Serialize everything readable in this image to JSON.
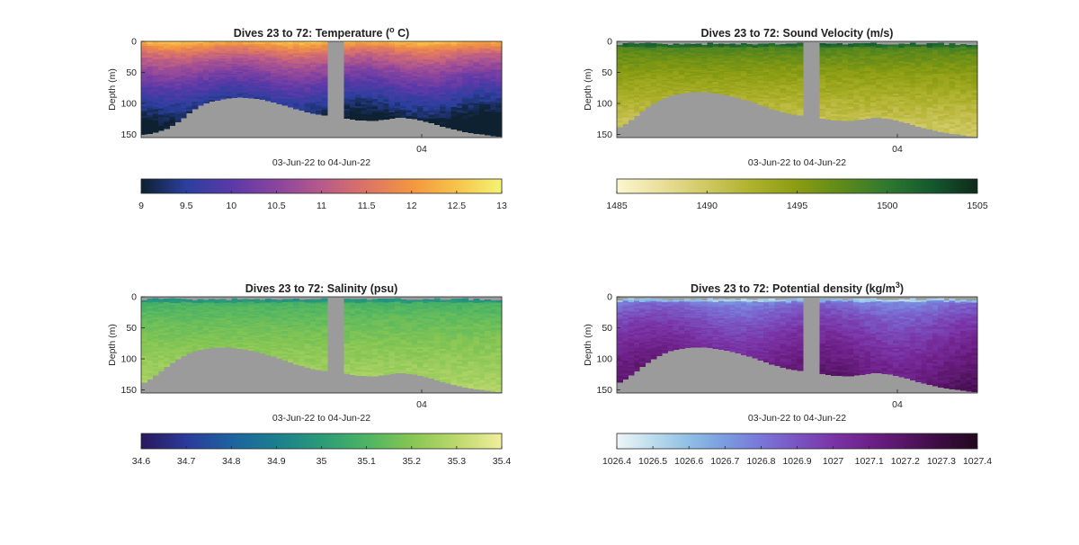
{
  "figure": {
    "colors": {
      "background": "#ffffff",
      "no_data": "#9b9b9b",
      "axis": "#262626"
    }
  },
  "chart_data": [
    {
      "type": "heatmap",
      "title": "Dives 23 to 72: Temperature (° C)",
      "title_parts": {
        "before": "Dives 23 to 72: Temperature (",
        "sup": "o",
        "after": " C)"
      },
      "xlabel": "03-Jun-22 to 04-Jun-22",
      "ylabel": "Depth (m)",
      "yticks": [
        0,
        50,
        100,
        150
      ],
      "ylim": [
        0,
        155
      ],
      "ydir": "reverse",
      "xticks": [
        "04"
      ],
      "colorbar": {
        "min": 9,
        "max": 13,
        "ticks": [
          "9",
          "9.5",
          "10",
          "10.5",
          "11",
          "11.5",
          "12",
          "12.5",
          "13"
        ],
        "colormap": [
          "#0d2130",
          "#2b3f9e",
          "#5b39a8",
          "#8a449e",
          "#b65a8a",
          "#dc7466",
          "#f39640",
          "#f7c34a",
          "#f3f472"
        ]
      },
      "seafloor_depth_profile_m": [
        150,
        148,
        145,
        140,
        132,
        122,
        110,
        102,
        97,
        94,
        91,
        90,
        90,
        91,
        93,
        96,
        100,
        104,
        108,
        112,
        116,
        118,
        120,
        122,
        124,
        126,
        127,
        128,
        126,
        124,
        122,
        123,
        125,
        128,
        132,
        136,
        140,
        143,
        146,
        148,
        150,
        152,
        153
      ]
    },
    {
      "type": "heatmap",
      "title": "Dives 23 to 72: Sound Velocity (m/s)",
      "xlabel": "03-Jun-22 to 04-Jun-22",
      "ylabel": "Depth (m)",
      "yticks": [
        0,
        50,
        100,
        150
      ],
      "ylim": [
        0,
        155
      ],
      "ydir": "reverse",
      "xticks": [
        "04"
      ],
      "colorbar": {
        "min": 1485,
        "max": 1505,
        "ticks": [
          "1485",
          "1490",
          "1495",
          "1500",
          "1505"
        ],
        "colormap": [
          "#fbf7cf",
          "#e8df9a",
          "#cfc862",
          "#aeb12c",
          "#8a9c12",
          "#5e8a1a",
          "#2f7830",
          "#14582e",
          "#0e2a19"
        ]
      },
      "seafloor_depth_profile_m": [
        140,
        132,
        122,
        112,
        102,
        94,
        88,
        84,
        82,
        81,
        81,
        82,
        84,
        87,
        90,
        94,
        98,
        103,
        108,
        112,
        116,
        118,
        120,
        122,
        124,
        126,
        127,
        128,
        126,
        124,
        122,
        123,
        125,
        128,
        132,
        136,
        140,
        143,
        146,
        148,
        150,
        152,
        153
      ]
    },
    {
      "type": "heatmap",
      "title": "Dives 23 to 72: Salinity (psu)",
      "xlabel": "03-Jun-22 to 04-Jun-22",
      "ylabel": "Depth (m)",
      "yticks": [
        0,
        50,
        100,
        150
      ],
      "ylim": [
        0,
        155
      ],
      "ydir": "reverse",
      "xticks": [
        "04"
      ],
      "colorbar": {
        "min": 34.6,
        "max": 35.4,
        "ticks": [
          "34.6",
          "34.7",
          "34.8",
          "34.9",
          "35",
          "35.1",
          "35.2",
          "35.3",
          "35.4"
        ],
        "colormap": [
          "#27185c",
          "#2c3a9a",
          "#1d62a0",
          "#1b7f8e",
          "#2a9b78",
          "#4db463",
          "#86c653",
          "#bcd86d",
          "#f2ef9c"
        ]
      },
      "seafloor_depth_profile_m": [
        140,
        132,
        122,
        112,
        102,
        94,
        88,
        84,
        82,
        81,
        81,
        82,
        84,
        87,
        90,
        94,
        98,
        103,
        108,
        112,
        116,
        118,
        120,
        122,
        124,
        126,
        127,
        128,
        126,
        124,
        122,
        123,
        125,
        128,
        132,
        136,
        140,
        143,
        146,
        148,
        150,
        152,
        153
      ]
    },
    {
      "type": "heatmap",
      "title": "Dives 23 to 72: Potential density (kg/m³)",
      "title_parts": {
        "before": "Dives 23 to 72: Potential density (kg/m",
        "sup": "3",
        "after": ")"
      },
      "xlabel": "03-Jun-22 to 04-Jun-22",
      "ylabel": "Depth (m)",
      "yticks": [
        0,
        50,
        100,
        150
      ],
      "ylim": [
        0,
        155
      ],
      "ydir": "reverse",
      "xticks": [
        "04"
      ],
      "colorbar": {
        "min": 1026.4,
        "max": 1027.4,
        "ticks": [
          "1026.4",
          "1026.5",
          "1026.6",
          "1026.7",
          "1026.8",
          "1026.9",
          "1027",
          "1027.1",
          "1027.2",
          "1027.3",
          "1027.4"
        ],
        "colormap": [
          "#eef6f8",
          "#bcdcec",
          "#8ebfe4",
          "#7a9ce0",
          "#7a76d8",
          "#7a54c2",
          "#7a34a6",
          "#6e2088",
          "#561565",
          "#3a0c40",
          "#220a1e"
        ]
      },
      "seafloor_depth_profile_m": [
        140,
        132,
        122,
        112,
        102,
        94,
        88,
        84,
        82,
        81,
        81,
        82,
        84,
        87,
        90,
        94,
        98,
        103,
        108,
        112,
        116,
        118,
        120,
        122,
        124,
        126,
        127,
        128,
        126,
        124,
        122,
        123,
        125,
        128,
        132,
        136,
        140,
        143,
        146,
        148,
        150,
        152,
        153
      ]
    }
  ]
}
